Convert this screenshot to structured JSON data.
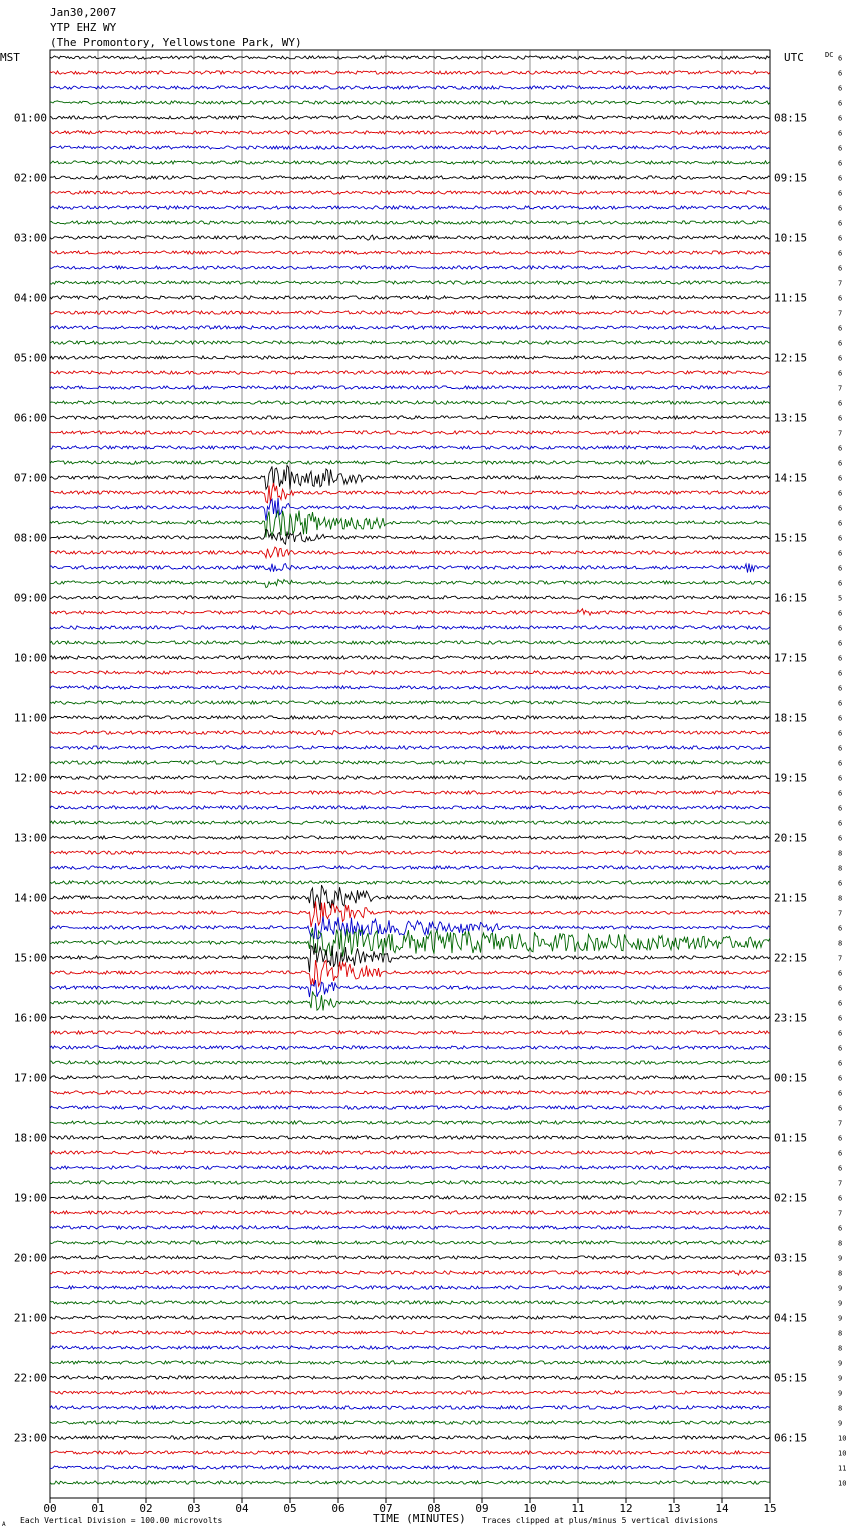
{
  "header": {
    "date": "Jan30,2007",
    "station": "YTP EHZ WY",
    "location": "(The Promontory, Yellowstone Park, WY)"
  },
  "axis_labels": {
    "left_timezone": "MST",
    "right_timezone": "UTC",
    "dc_label": "DC",
    "xlabel": "TIME (MINUTES)"
  },
  "footer": {
    "scale_note": "Each Vertical Division =  100.00 microvolts",
    "clip_note": "Traces clipped at plus/minus 5 vertical divisions",
    "corner_mark": "A"
  },
  "colors": {
    "trace_cycle": [
      "#000000",
      "#dd0000",
      "#0000cc",
      "#006600"
    ],
    "grid": "#000000",
    "background": "#ffffff"
  },
  "chart_data": {
    "type": "line",
    "title": "YTP EHZ WY",
    "xlabel": "TIME (MINUTES)",
    "xlim": [
      0,
      15
    ],
    "x_ticks": [
      "00",
      "01",
      "02",
      "03",
      "04",
      "05",
      "06",
      "07",
      "08",
      "09",
      "10",
      "11",
      "12",
      "13",
      "14",
      "15"
    ],
    "trace_minutes": 15,
    "trace_count": 96,
    "left_hour_labels": [
      "01:00",
      "02:00",
      "03:00",
      "04:00",
      "05:00",
      "06:00",
      "07:00",
      "08:00",
      "09:00",
      "10:00",
      "11:00",
      "12:00",
      "13:00",
      "14:00",
      "15:00",
      "16:00",
      "17:00",
      "18:00",
      "19:00",
      "20:00",
      "21:00",
      "22:00",
      "23:00"
    ],
    "right_hour_labels": [
      "08:15",
      "09:15",
      "10:15",
      "11:15",
      "12:15",
      "13:15",
      "14:15",
      "15:15",
      "16:15",
      "17:15",
      "18:15",
      "19:15",
      "20:15",
      "21:15",
      "22:15",
      "23:15",
      "00:15",
      "01:15",
      "02:15",
      "03:15",
      "04:15",
      "05:15",
      "06:15"
    ],
    "dc_offsets": [
      "6",
      "6",
      "6",
      "6",
      "6",
      "6",
      "6",
      "6",
      "6",
      "6",
      "6",
      "6",
      "6",
      "6",
      "6",
      "7",
      "6",
      "7",
      "6",
      "6",
      "6",
      "6",
      "7",
      "6",
      "6",
      "7",
      "6",
      "6",
      "6",
      "6",
      "6",
      "6",
      "6",
      "6",
      "6",
      "6",
      "5",
      "6",
      "6",
      "6",
      "6",
      "6",
      "6",
      "6",
      "6",
      "6",
      "6",
      "6",
      "6",
      "6",
      "6",
      "6",
      "6",
      "8",
      "8",
      "6",
      "8",
      "7",
      "6",
      "8",
      "7",
      "6",
      "6",
      "6",
      "6",
      "6",
      "6",
      "6",
      "6",
      "6",
      "6",
      "7",
      "6",
      "6",
      "6",
      "7",
      "6",
      "7",
      "6",
      "8",
      "9",
      "8",
      "9",
      "9",
      "9",
      "8",
      "8",
      "9",
      "9",
      "9",
      "8",
      "9",
      "10",
      "10",
      "11",
      "10"
    ],
    "events": [
      {
        "trace": 12,
        "minute": 6.6,
        "amplitude": 1.2,
        "duration": 0.3
      },
      {
        "trace": 16,
        "minute": 1.0,
        "amplitude": 0.9,
        "duration": 0.5
      },
      {
        "trace": 22,
        "minute": 0.3,
        "amplitude": 0.6,
        "duration": 0.3
      },
      {
        "trace": 26,
        "minute": 10.3,
        "amplitude": 0.5,
        "duration": 0.3
      },
      {
        "trace": 30,
        "minute": 10.9,
        "amplitude": 1.0,
        "duration": 0.3
      },
      {
        "trace": 31,
        "minute": 3.0,
        "amplitude": 1.0,
        "duration": 0.4
      },
      {
        "trace": 28,
        "minute": 4.5,
        "amplitude": 5.0,
        "duration": 2.0,
        "clipped": true
      },
      {
        "trace": 29,
        "minute": 4.5,
        "amplitude": 5.0,
        "duration": 0.6,
        "clipped": true
      },
      {
        "trace": 30,
        "minute": 4.5,
        "amplitude": 5.0,
        "duration": 0.5,
        "clipped": true
      },
      {
        "trace": 31,
        "minute": 4.5,
        "amplitude": 5.0,
        "duration": 2.5,
        "clipped": true
      },
      {
        "trace": 32,
        "minute": 4.5,
        "amplitude": 3.0,
        "duration": 1.2,
        "clipped": true
      },
      {
        "trace": 33,
        "minute": 4.5,
        "amplitude": 2.5,
        "duration": 0.6,
        "clipped": true
      },
      {
        "trace": 34,
        "minute": 4.5,
        "amplitude": 2.5,
        "duration": 0.6,
        "clipped": true
      },
      {
        "trace": 35,
        "minute": 4.5,
        "amplitude": 2.0,
        "duration": 0.6,
        "clipped": true
      },
      {
        "trace": 34,
        "minute": 14.5,
        "amplitude": 2.0,
        "duration": 0.3
      },
      {
        "trace": 37,
        "minute": 11.0,
        "amplitude": 1.5,
        "duration": 0.5
      },
      {
        "trace": 39,
        "minute": 11.5,
        "amplitude": 0.6,
        "duration": 0.3
      },
      {
        "trace": 40,
        "minute": 0.1,
        "amplitude": 1.0,
        "duration": 0.3
      },
      {
        "trace": 42,
        "minute": 1.8,
        "amplitude": 0.6,
        "duration": 0.2
      },
      {
        "trace": 45,
        "minute": 5.5,
        "amplitude": 1.0,
        "duration": 0.9
      },
      {
        "trace": 51,
        "minute": 11.0,
        "amplitude": 0.5,
        "duration": 0.4
      },
      {
        "trace": 56,
        "minute": 5.4,
        "amplitude": 5.0,
        "duration": 1.4,
        "clipped": true
      },
      {
        "trace": 57,
        "minute": 5.4,
        "amplitude": 5.0,
        "duration": 1.2,
        "clipped": true
      },
      {
        "trace": 58,
        "minute": 5.4,
        "amplitude": 4.0,
        "duration": 4.0,
        "clipped": true
      },
      {
        "trace": 59,
        "minute": 5.4,
        "amplitude": 5.0,
        "duration": 9.6,
        "clipped": true
      },
      {
        "trace": 60,
        "minute": 5.4,
        "amplitude": 5.0,
        "duration": 1.8,
        "clipped": true
      },
      {
        "trace": 61,
        "minute": 5.4,
        "amplitude": 5.0,
        "duration": 1.5,
        "clipped": true
      },
      {
        "trace": 62,
        "minute": 5.4,
        "amplitude": 4.0,
        "duration": 0.6,
        "clipped": true
      },
      {
        "trace": 63,
        "minute": 5.4,
        "amplitude": 4.0,
        "duration": 0.6,
        "clipped": true
      },
      {
        "trace": 60,
        "minute": 1.0,
        "amplitude": 0.6,
        "duration": 1.5
      },
      {
        "trace": 64,
        "minute": 1.0,
        "amplitude": 0.5,
        "duration": 0.6
      },
      {
        "trace": 66,
        "minute": 2.2,
        "amplitude": 0.7,
        "duration": 0.7
      },
      {
        "trace": 81,
        "minute": 14.3,
        "amplitude": 1.0,
        "duration": 0.7
      },
      {
        "trace": 82,
        "minute": 0.0,
        "amplitude": 0.6,
        "duration": 3.8
      }
    ]
  }
}
